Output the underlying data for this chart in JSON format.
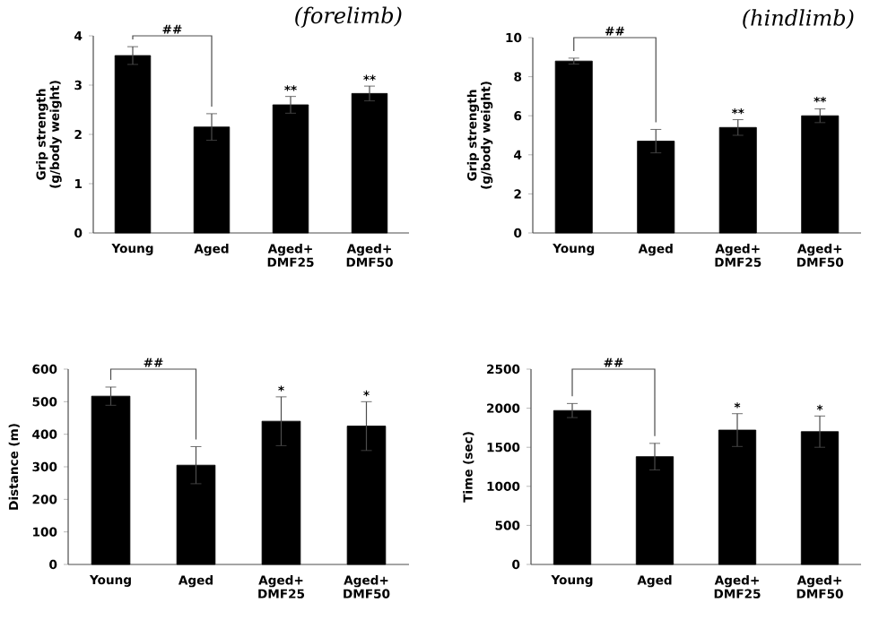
{
  "chart_data": [
    {
      "type": "bar",
      "title": "(forelimb)",
      "ylabel": "Grip strength (g/body weight)",
      "categories": [
        "Young",
        "Aged",
        "Aged+ DMF25",
        "Aged+ DMF50"
      ],
      "values": [
        3.6,
        2.15,
        2.6,
        2.83
      ],
      "errors": [
        0.18,
        0.27,
        0.17,
        0.15
      ],
      "color": "#000000",
      "ylim": [
        0,
        4
      ],
      "yticks": [
        0,
        1,
        2,
        3,
        4
      ],
      "annotations": [
        "##",
        {
          "text": "**",
          "x": "Aged+ DMF25",
          "y": 2.77
        },
        {
          "text": "**",
          "x": "Aged+ DMF50",
          "y": 2.98
        }
      ]
    },
    {
      "type": "bar",
      "title": "(hindlimb)",
      "ylabel": "Grip strength (g/body weight)",
      "categories": [
        "Young",
        "Aged",
        "Aged+ DMF25",
        "Aged+ DMF50"
      ],
      "values": [
        8.8,
        4.7,
        5.4,
        6.0
      ],
      "errors": [
        0.15,
        0.6,
        0.4,
        0.35
      ],
      "color": "#000000",
      "ylim": [
        0,
        10
      ],
      "yticks": [
        0,
        2,
        4,
        6,
        8,
        10
      ],
      "annotations": [
        "##",
        {
          "text": "**",
          "x": "Aged+ DMF25",
          "y": 5.8
        },
        {
          "text": "**",
          "x": "Aged+ DMF50",
          "y": 6.4
        }
      ]
    },
    {
      "type": "bar",
      "ylabel": "Distance (m)",
      "categories": [
        "Young",
        "Aged",
        "Aged+ DMF25",
        "Aged+ DMF50"
      ],
      "values": [
        517,
        305,
        440,
        425
      ],
      "errors": [
        28,
        57,
        75,
        75
      ],
      "color": "#000000",
      "ylim": [
        0,
        600
      ],
      "yticks": [
        0,
        100,
        200,
        300,
        400,
        500,
        600
      ],
      "annotations": [
        "##",
        {
          "text": "*",
          "x": "Aged+ DMF25",
          "y": 515
        },
        {
          "text": "*",
          "x": "Aged+ DMF50",
          "y": 500
        }
      ]
    },
    {
      "type": "bar",
      "ylabel": "Time (sec)",
      "categories": [
        "Young",
        "Aged",
        "Aged+ DMF25",
        "Aged+ DMF50"
      ],
      "values": [
        1970,
        1380,
        1720,
        1700
      ],
      "errors": [
        90,
        170,
        210,
        200
      ],
      "color": "#000000",
      "ylim": [
        0,
        2500
      ],
      "yticks": [
        0,
        500,
        1000,
        1500,
        2000,
        2500
      ],
      "annotations": [
        "##",
        {
          "text": "*",
          "x": "Aged+ DMF25",
          "y": 1930
        },
        {
          "text": "*",
          "x": "Aged+ DMF50",
          "y": 1900
        }
      ]
    }
  ]
}
